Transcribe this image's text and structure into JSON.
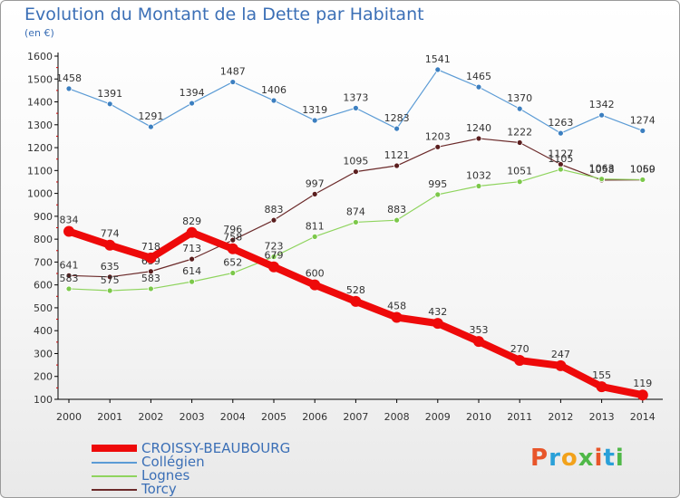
{
  "title": "Evolution du Montant de la Dette par Habitant",
  "unit_label": "(en €)",
  "logo": {
    "text": "Proxiti",
    "colors": [
      "#e8552a",
      "#2aa0d8",
      "#f2a21b",
      "#4fb848",
      "#e8552a",
      "#2aa0d8",
      "#4fb848"
    ]
  },
  "chart_data": {
    "type": "line",
    "x": [
      "2000",
      "2001",
      "2002",
      "2003",
      "2004",
      "2005",
      "2006",
      "2007",
      "2008",
      "2009",
      "2010",
      "2011",
      "2012",
      "2013",
      "2014"
    ],
    "ylim": [
      100,
      1600
    ],
    "yticks": [
      100,
      200,
      300,
      400,
      500,
      600,
      700,
      800,
      900,
      1000,
      1100,
      1200,
      1300,
      1400,
      1500,
      1600
    ],
    "grid": false,
    "legend_position": "bottom-left",
    "series": [
      {
        "name": "Collégien",
        "color": "#5b9bd5",
        "width": 1.2,
        "marker_color": "#3c7fc0",
        "values": [
          1458,
          1391,
          1291,
          1394,
          1487,
          1406,
          1319,
          1373,
          1283,
          1541,
          1465,
          1370,
          1263,
          1342,
          1274
        ]
      },
      {
        "name": "Torcy",
        "color": "#6b2a2a",
        "width": 1.2,
        "marker_color": "#5a1e1e",
        "values": [
          641,
          635,
          659,
          713,
          796,
          883,
          997,
          1095,
          1121,
          1203,
          1240,
          1222,
          1127,
          1058,
          1059
        ]
      },
      {
        "name": "Lognes",
        "color": "#8fd45e",
        "width": 1.2,
        "marker_color": "#7cc84a",
        "values": [
          583,
          575,
          583,
          614,
          652,
          723,
          811,
          874,
          883,
          995,
          1032,
          1051,
          1105,
          1063,
          1060
        ]
      },
      {
        "name": "CROISSY-BEAUBOURG",
        "color": "#ee0a0a",
        "width": 8,
        "marker_color": "#ee0a0a",
        "values": [
          834,
          774,
          718,
          829,
          758,
          679,
          600,
          528,
          458,
          432,
          353,
          270,
          247,
          155,
          119
        ]
      }
    ]
  }
}
